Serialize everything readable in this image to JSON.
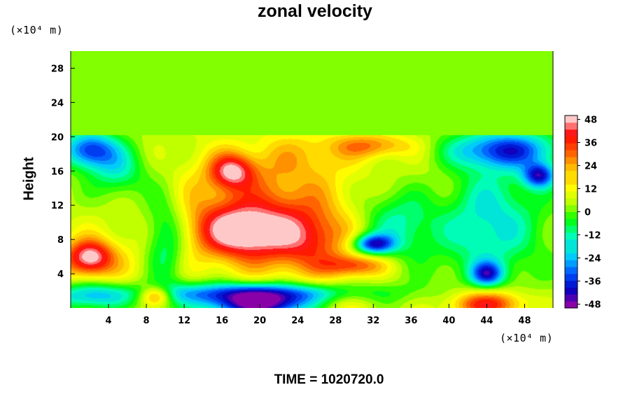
{
  "chart_data": {
    "type": "heatmap",
    "title": "zonal velocity",
    "xlabel": "",
    "ylabel": "Height",
    "x_unit_label": "(×10⁴ m)",
    "y_unit_label": "(×10⁴ m)",
    "x_ticks": [
      4,
      8,
      12,
      16,
      20,
      24,
      28,
      32,
      36,
      40,
      44,
      48
    ],
    "y_ticks": [
      4,
      8,
      12,
      16,
      20,
      24,
      28
    ],
    "xlim": [
      0,
      51
    ],
    "ylim": [
      0,
      30
    ],
    "colorbar": {
      "ticks": [
        48,
        36,
        24,
        12,
        0,
        -12,
        -24,
        -36,
        -48
      ],
      "range": [
        -50,
        50
      ]
    },
    "features": [
      {
        "x": 18,
        "y": 9,
        "value": 48,
        "sx": 3.0,
        "sy": 2.0
      },
      {
        "x": 21,
        "y": 11,
        "value": 32,
        "sx": 6.0,
        "sy": 5.0
      },
      {
        "x": 17,
        "y": 16,
        "value": 44,
        "sx": 1.6,
        "sy": 1.4
      },
      {
        "x": 25,
        "y": 8,
        "value": 28,
        "sx": 3.0,
        "sy": 2.5
      },
      {
        "x": 30,
        "y": 5,
        "value": 34,
        "sx": 2.5,
        "sy": 0.9
      },
      {
        "x": 2,
        "y": 6,
        "value": 46,
        "sx": 1.6,
        "sy": 1.3
      },
      {
        "x": 2,
        "y": 5,
        "value": 20,
        "sx": 4.0,
        "sy": 3.0
      },
      {
        "x": 9,
        "y": 1.5,
        "value": 40,
        "sx": 1.2,
        "sy": 0.8
      },
      {
        "x": 44,
        "y": 0.5,
        "value": 46,
        "sx": 2.8,
        "sy": 1.2
      },
      {
        "x": 32,
        "y": 19,
        "value": 28,
        "sx": 3.0,
        "sy": 1.0
      },
      {
        "x": 25,
        "y": 18,
        "value": 14,
        "sx": 4.0,
        "sy": 2.0
      },
      {
        "x": 38,
        "y": 12,
        "value": 14,
        "sx": 3.0,
        "sy": 4.0
      },
      {
        "x": 20,
        "y": 0.3,
        "value": -50,
        "sx": 4.0,
        "sy": 1.0
      },
      {
        "x": 20,
        "y": 1.8,
        "value": -42,
        "sx": 8.0,
        "sy": 0.9
      },
      {
        "x": 2,
        "y": 18.5,
        "value": -40,
        "sx": 2.0,
        "sy": 1.5
      },
      {
        "x": 46,
        "y": 18.5,
        "value": -38,
        "sx": 4.0,
        "sy": 1.5
      },
      {
        "x": 49.5,
        "y": 15.5,
        "value": -40,
        "sx": 1.2,
        "sy": 1.0
      },
      {
        "x": 32,
        "y": 7.5,
        "value": -42,
        "sx": 1.5,
        "sy": 0.8
      },
      {
        "x": 44,
        "y": 10,
        "value": -22,
        "sx": 4.0,
        "sy": 5.0
      },
      {
        "x": 35,
        "y": 10,
        "value": -20,
        "sx": 3.0,
        "sy": 3.0
      },
      {
        "x": 10,
        "y": 8,
        "value": -18,
        "sx": 1.5,
        "sy": 4.0
      },
      {
        "x": 5,
        "y": 16,
        "value": -16,
        "sx": 2.0,
        "sy": 2.0
      },
      {
        "x": 44,
        "y": 4,
        "value": -34,
        "sx": 1.2,
        "sy": 1.0
      },
      {
        "x": 2,
        "y": 1.5,
        "value": -30,
        "sx": 3.0,
        "sy": 1.2
      },
      {
        "x": 28,
        "y": 1,
        "value": 20,
        "sx": 3.0,
        "sy": 1.5
      },
      {
        "x": 13,
        "y": 12,
        "value": 10,
        "sx": 2.5,
        "sy": 5.0
      }
    ],
    "upper_layer": {
      "from_y": 20.2,
      "value": 0
    }
  },
  "footer": {
    "time_label": "TIME = 1020720.0"
  },
  "colors": {
    "colormap": [
      "#8a00a8",
      "#0000c0",
      "#0050ff",
      "#00c8ff",
      "#00ffb4",
      "#00ff00",
      "#b4ff00",
      "#ffff00",
      "#ffb400",
      "#ff5000",
      "#ff0000",
      "#ffc8c8"
    ]
  }
}
